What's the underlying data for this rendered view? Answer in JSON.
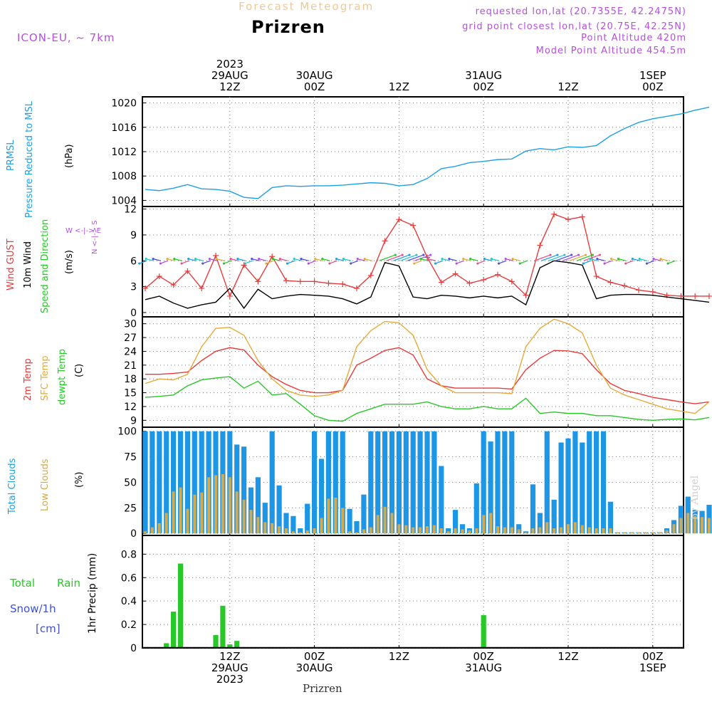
{
  "header": {
    "forecast_title": "Forecast Meteogram",
    "place": "Prizren",
    "model": "ICON-EU, ~ 7km",
    "requested": "requested lon,lat (20.7355E, 42.2475N)",
    "grid_point": "grid point closest lon,lat (20.75E, 42.25N)",
    "point_altitude": "Point Altitude 420m",
    "model_altitude": "Model Point Altitude 454.5m"
  },
  "time_axis": {
    "top_ticks": [
      {
        "hour": 12,
        "lines": [
          "2023",
          "29AUG",
          "12Z"
        ]
      },
      {
        "hour": 24,
        "lines": [
          "30AUG",
          "00Z"
        ]
      },
      {
        "hour": 36,
        "lines": [
          "12Z"
        ]
      },
      {
        "hour": 48,
        "lines": [
          "31AUG",
          "00Z"
        ]
      },
      {
        "hour": 60,
        "lines": [
          "12Z"
        ]
      },
      {
        "hour": 72,
        "lines": [
          "1SEP",
          "00Z"
        ]
      }
    ],
    "bottom_ticks": [
      {
        "hour": 12,
        "lines": [
          "12Z",
          "29AUG",
          "2023"
        ]
      },
      {
        "hour": 24,
        "lines": [
          "00Z",
          "30AUG"
        ]
      },
      {
        "hour": 36,
        "lines": [
          "12Z"
        ]
      },
      {
        "hour": 48,
        "lines": [
          "00Z",
          "31AUG"
        ]
      },
      {
        "hour": 60,
        "lines": [
          "12Z"
        ]
      },
      {
        "hour": 72,
        "lines": [
          "00Z",
          "1SEP"
        ]
      }
    ],
    "footer": "Prizren"
  },
  "panel_labels": {
    "pressure": {
      "l1": "PRMSL",
      "l2": "Pressure Reduced to MSL",
      "unit": "(hPa)"
    },
    "wind": {
      "l1": "Wind GUST",
      "l2": "10m Wind",
      "l3": "Speed and Direction",
      "unit": "(m/s)",
      "compass_ns": "N <-|-> S",
      "compass_we": "W <-|-> E"
    },
    "temp": {
      "l1": "2m Temp",
      "l2": "SFC Temp",
      "l3": "dewpt Temp",
      "unit": "(C)"
    },
    "cloud": {
      "l1": "Total Clouds",
      "l2": "Low Clouds",
      "unit": "(%)"
    },
    "precip": {
      "l1": "Total",
      "l1b": "Rain",
      "l2": "Snow/1h",
      "l3": "[cm]",
      "unit": "1hr Precip (mm)"
    }
  },
  "watermark": "by Angel",
  "colors": {
    "pressure": "#1ea0e6",
    "gust": "#e63c3c",
    "wind": "#000000",
    "sfc_temp": "#e6aa3c",
    "temp2m": "#e63c3c",
    "dewpt": "#28c828",
    "total_cloud": "#1e96e6",
    "low_cloud": "#d2aa50",
    "rain": "#28c828",
    "snow": "#3c50dc",
    "magenta": "#b450dc"
  },
  "chart_data": [
    {
      "type": "line",
      "name": "PRMSL",
      "ylabel": "Pressure Reduced to MSL (hPa)",
      "ylim": [
        1003,
        1021
      ],
      "yticks": [
        1004,
        1008,
        1012,
        1016,
        1020
      ],
      "x_hours": [
        0,
        2,
        4,
        6,
        8,
        10,
        12,
        14,
        16,
        18,
        20,
        22,
        24,
        26,
        28,
        30,
        32,
        34,
        36,
        38,
        40,
        42,
        44,
        46,
        48,
        50,
        52,
        54,
        56,
        58,
        60,
        62,
        64,
        66,
        68,
        70,
        72,
        74,
        76,
        78,
        80
      ],
      "values": [
        1005.8,
        1005.6,
        1006,
        1006.6,
        1005.9,
        1005.8,
        1005.5,
        1004.5,
        1004.3,
        1006.1,
        1006.4,
        1006.3,
        1006.4,
        1006.4,
        1006.5,
        1006.7,
        1006.9,
        1006.8,
        1006.4,
        1006.6,
        1007.6,
        1009.2,
        1009.6,
        1010.2,
        1010.4,
        1010.7,
        1010.8,
        1012.1,
        1012.5,
        1012.3,
        1012.8,
        1012.7,
        1013.0,
        1014.6,
        1015.8,
        1016.8,
        1017.4,
        1017.8,
        1018.2,
        1018.8,
        1019.3
      ],
      "grid": true
    },
    {
      "type": "line",
      "name": "Wind",
      "ylabel": "(m/s)",
      "ylim": [
        -0.5,
        12.3
      ],
      "yticks": [
        0,
        3,
        6,
        9,
        12
      ],
      "x_hours": [
        0,
        2,
        4,
        6,
        8,
        10,
        12,
        14,
        16,
        18,
        20,
        22,
        24,
        26,
        28,
        30,
        32,
        34,
        36,
        38,
        40,
        42,
        44,
        46,
        48,
        50,
        52,
        54,
        56,
        58,
        60,
        62,
        64,
        66,
        68,
        70,
        72,
        74,
        76,
        78,
        80
      ],
      "series": [
        {
          "name": "Wind GUST",
          "values": [
            2.8,
            4.2,
            3.2,
            4.8,
            2.8,
            6.6,
            1.9,
            5.5,
            3.6,
            6.5,
            3.7,
            3.6,
            3.6,
            3.4,
            3.3,
            2.8,
            4.3,
            8.3,
            10.8,
            10.1,
            6.4,
            3.5,
            4.5,
            3.4,
            3.8,
            4.4,
            3.6,
            2,
            7.8,
            11.4,
            10.8,
            11.1,
            4.2,
            3.5,
            3.1,
            2.6,
            2.4,
            2.0,
            1.9,
            1.9,
            1.9
          ]
        },
        {
          "name": "10m Wind",
          "values": [
            1.5,
            1.9,
            1.1,
            0.5,
            0.9,
            1.2,
            2.8,
            0.5,
            2.7,
            1.6,
            1.9,
            2.1,
            2.0,
            1.9,
            1.6,
            1.0,
            1.8,
            5.8,
            5.4,
            1.8,
            1.6,
            2.0,
            1.9,
            1.7,
            1.9,
            1.7,
            1.9,
            0.9,
            5.2,
            6.0,
            5.8,
            5.5,
            1.6,
            2.0,
            2.1,
            2.1,
            2.0,
            1.8,
            1.6,
            1.4,
            1.2
          ]
        }
      ],
      "wind_arrow_level": 6,
      "grid": true
    },
    {
      "type": "line",
      "name": "Temperature",
      "ylabel": "(C)",
      "ylim": [
        7.5,
        31.5
      ],
      "yticks": [
        9,
        12,
        15,
        18,
        21,
        24,
        27,
        30
      ],
      "x_hours": [
        0,
        2,
        4,
        6,
        8,
        10,
        12,
        14,
        16,
        18,
        20,
        22,
        24,
        26,
        28,
        30,
        32,
        34,
        36,
        38,
        40,
        42,
        44,
        46,
        48,
        50,
        52,
        54,
        56,
        58,
        60,
        62,
        64,
        66,
        68,
        70,
        72,
        74,
        76,
        78,
        80
      ],
      "series": [
        {
          "name": "2m Temp",
          "values": [
            19,
            19,
            19.2,
            19.5,
            22,
            24,
            24.8,
            24.3,
            21,
            18.5,
            16.8,
            15.5,
            15,
            15,
            15.5,
            21,
            22.5,
            24.2,
            24.8,
            23.2,
            18,
            16.5,
            16,
            16,
            16,
            16,
            15.8,
            20,
            22.5,
            24.2,
            24.1,
            23.5,
            20,
            17,
            15.5,
            14.8,
            14,
            13.5,
            13,
            12.6,
            13
          ]
        },
        {
          "name": "SFC Temp",
          "values": [
            17,
            18,
            17.8,
            19,
            25,
            29,
            29.2,
            27.5,
            22,
            18,
            15.5,
            14.5,
            14.2,
            14.5,
            15.5,
            25,
            28.5,
            30.5,
            30.2,
            27.5,
            20,
            16.5,
            15,
            15,
            15,
            15,
            14.8,
            25,
            29,
            31,
            30,
            28,
            21,
            16,
            14.5,
            13.5,
            12.5,
            11.5,
            11,
            10.5,
            13
          ]
        },
        {
          "name": "dewpt Temp",
          "values": [
            14,
            14.2,
            14.5,
            16.5,
            17.8,
            18.2,
            18.5,
            16,
            17.5,
            14.5,
            14.8,
            12.5,
            10,
            9,
            8.8,
            10.5,
            11.5,
            12.5,
            12.5,
            12.5,
            13,
            12,
            11.5,
            11.5,
            12,
            11.5,
            11.5,
            13.8,
            10.5,
            10.8,
            10.5,
            10.5,
            10,
            10,
            9.6,
            9.2,
            9.0,
            9.2,
            9.3,
            9.1,
            9.6
          ]
        }
      ],
      "grid": true
    },
    {
      "type": "bar",
      "name": "Clouds",
      "ylabel": "(%)",
      "ylim": [
        -2,
        104
      ],
      "yticks": [
        0,
        25,
        50,
        75,
        100
      ],
      "x_hours": [
        0,
        1,
        2,
        3,
        4,
        5,
        6,
        7,
        8,
        9,
        10,
        11,
        12,
        13,
        14,
        15,
        16,
        17,
        18,
        19,
        20,
        21,
        22,
        23,
        24,
        25,
        26,
        27,
        28,
        29,
        30,
        31,
        32,
        33,
        34,
        35,
        36,
        37,
        38,
        39,
        40,
        41,
        42,
        43,
        44,
        45,
        46,
        47,
        48,
        49,
        50,
        51,
        52,
        53,
        54,
        55,
        56,
        57,
        58,
        59,
        60,
        61,
        62,
        63,
        64,
        65,
        66,
        67,
        68,
        69,
        70,
        71,
        72,
        73,
        74,
        75,
        76,
        77,
        78,
        79,
        80
      ],
      "series": [
        {
          "name": "Total Clouds",
          "values": [
            100,
            100,
            100,
            100,
            100,
            100,
            100,
            100,
            100,
            100,
            100,
            100,
            100,
            87,
            85,
            45,
            55,
            30,
            100,
            47,
            20,
            17,
            5,
            29,
            100,
            73,
            100,
            100,
            100,
            24,
            12,
            38,
            100,
            100,
            100,
            100,
            100,
            100,
            100,
            100,
            100,
            100,
            66,
            5,
            23,
            9,
            5,
            49,
            100,
            90,
            100,
            100,
            100,
            9,
            2,
            48,
            20,
            100,
            33,
            89,
            93,
            100,
            89,
            100,
            100,
            100,
            31,
            1,
            1,
            1,
            1,
            1,
            1,
            1,
            5,
            13,
            27,
            36,
            23,
            22,
            28
          ]
        },
        {
          "name": "Low Clouds",
          "values": [
            2,
            6,
            10,
            20,
            41,
            45,
            24,
            38,
            40,
            55,
            57,
            58,
            55,
            41,
            33,
            23,
            16,
            11,
            10,
            7,
            5,
            2,
            1,
            3,
            5,
            15,
            34,
            35,
            25,
            2,
            1,
            4,
            6,
            18,
            26,
            20,
            9,
            8,
            6,
            6,
            7,
            8,
            5,
            2,
            5,
            4,
            3,
            5,
            18,
            20,
            7,
            6,
            6,
            4,
            1,
            5,
            6,
            11,
            5,
            6,
            9,
            11,
            8,
            6,
            5,
            5,
            5,
            1,
            1,
            1,
            1,
            1,
            1,
            1,
            3,
            9,
            15,
            20,
            17,
            16,
            15
          ]
        }
      ],
      "grid": true
    },
    {
      "type": "bar",
      "name": "Precip",
      "ylabel": "1hr Precip (mm)",
      "ylim": [
        0,
        0.96
      ],
      "yticks": [
        0,
        0.2,
        0.4,
        0.6,
        0.8
      ],
      "x_hours": [
        0,
        1,
        2,
        3,
        4,
        5,
        6,
        7,
        8,
        9,
        10,
        11,
        12,
        13,
        14,
        15,
        16,
        17,
        18,
        19,
        20,
        21,
        22,
        23,
        24,
        25,
        26,
        27,
        28,
        29,
        30,
        31,
        32,
        33,
        34,
        35,
        36,
        37,
        38,
        39,
        40,
        41,
        42,
        43,
        44,
        45,
        46,
        47,
        48,
        49,
        50,
        51,
        52,
        53,
        54,
        55,
        56,
        57,
        58,
        59,
        60,
        61,
        62,
        63,
        64,
        65,
        66,
        67,
        68,
        69,
        70,
        71,
        72,
        73,
        74,
        75,
        76,
        77,
        78,
        79,
        80
      ],
      "series": [
        {
          "name": "Rain",
          "values": [
            0,
            0,
            0,
            0.04,
            0.31,
            0.72,
            0,
            0,
            0,
            0,
            0.11,
            0.36,
            0.03,
            0.06,
            0,
            0,
            0,
            0,
            0,
            0,
            0,
            0,
            0,
            0,
            0,
            0,
            0,
            0,
            0,
            0,
            0,
            0,
            0,
            0,
            0,
            0,
            0,
            0,
            0,
            0,
            0,
            0,
            0,
            0,
            0,
            0,
            0,
            0,
            0.28,
            0,
            0,
            0,
            0,
            0,
            0,
            0,
            0,
            0,
            0,
            0,
            0,
            0,
            0,
            0,
            0,
            0,
            0,
            0,
            0,
            0,
            0,
            0,
            0,
            0,
            0,
            0,
            0,
            0,
            0,
            0,
            0
          ]
        }
      ],
      "grid": true
    }
  ]
}
